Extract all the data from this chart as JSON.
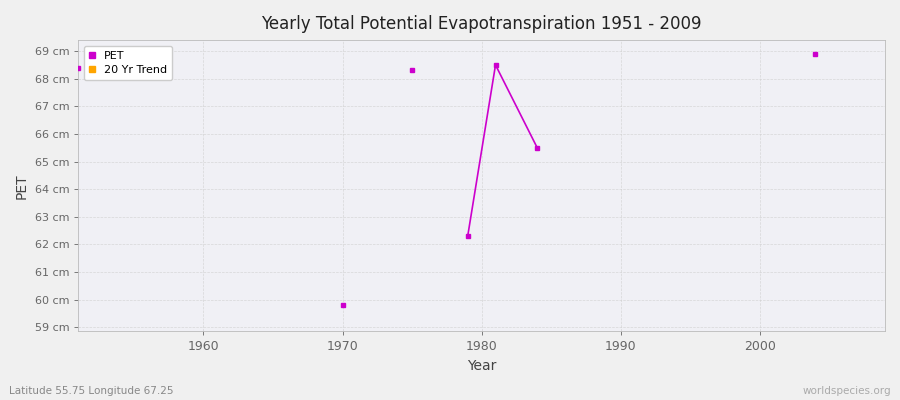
{
  "title": "Yearly Total Potential Evapotranspiration 1951 - 2009",
  "xlabel": "Year",
  "ylabel": "PET",
  "subtitle": "Latitude 55.75 Longitude 67.25",
  "watermark": "worldspecies.org",
  "background_color": "#f0f0f0",
  "plot_bg_color": "#f0f0f5",
  "grid_color": "#cccccc",
  "pet_color": "#cc00cc",
  "trend_color": "#ffa500",
  "ylim": [
    59,
    69
  ],
  "xlim": [
    1951,
    2009
  ],
  "yticks": [
    59,
    60,
    61,
    62,
    63,
    64,
    65,
    66,
    67,
    68,
    69
  ],
  "ytick_labels": [
    "59 cm",
    "60 cm",
    "61 cm",
    "62 cm",
    "63 cm",
    "64 cm",
    "65 cm",
    "66 cm",
    "67 cm",
    "68 cm",
    "69 cm"
  ],
  "xticks": [
    1960,
    1970,
    1980,
    1990,
    2000
  ],
  "pet_points": [
    [
      1951,
      68.4
    ],
    [
      1970,
      59.8
    ],
    [
      1975,
      68.3
    ],
    [
      1979,
      62.3
    ],
    [
      1981,
      68.5
    ],
    [
      1984,
      65.5
    ],
    [
      2004,
      68.9
    ]
  ],
  "pet_lines": [
    [
      [
        1979,
        62.3
      ],
      [
        1981,
        68.5
      ],
      [
        1984,
        65.5
      ]
    ]
  ],
  "marker_size": 2.5,
  "line_width": 1.2
}
